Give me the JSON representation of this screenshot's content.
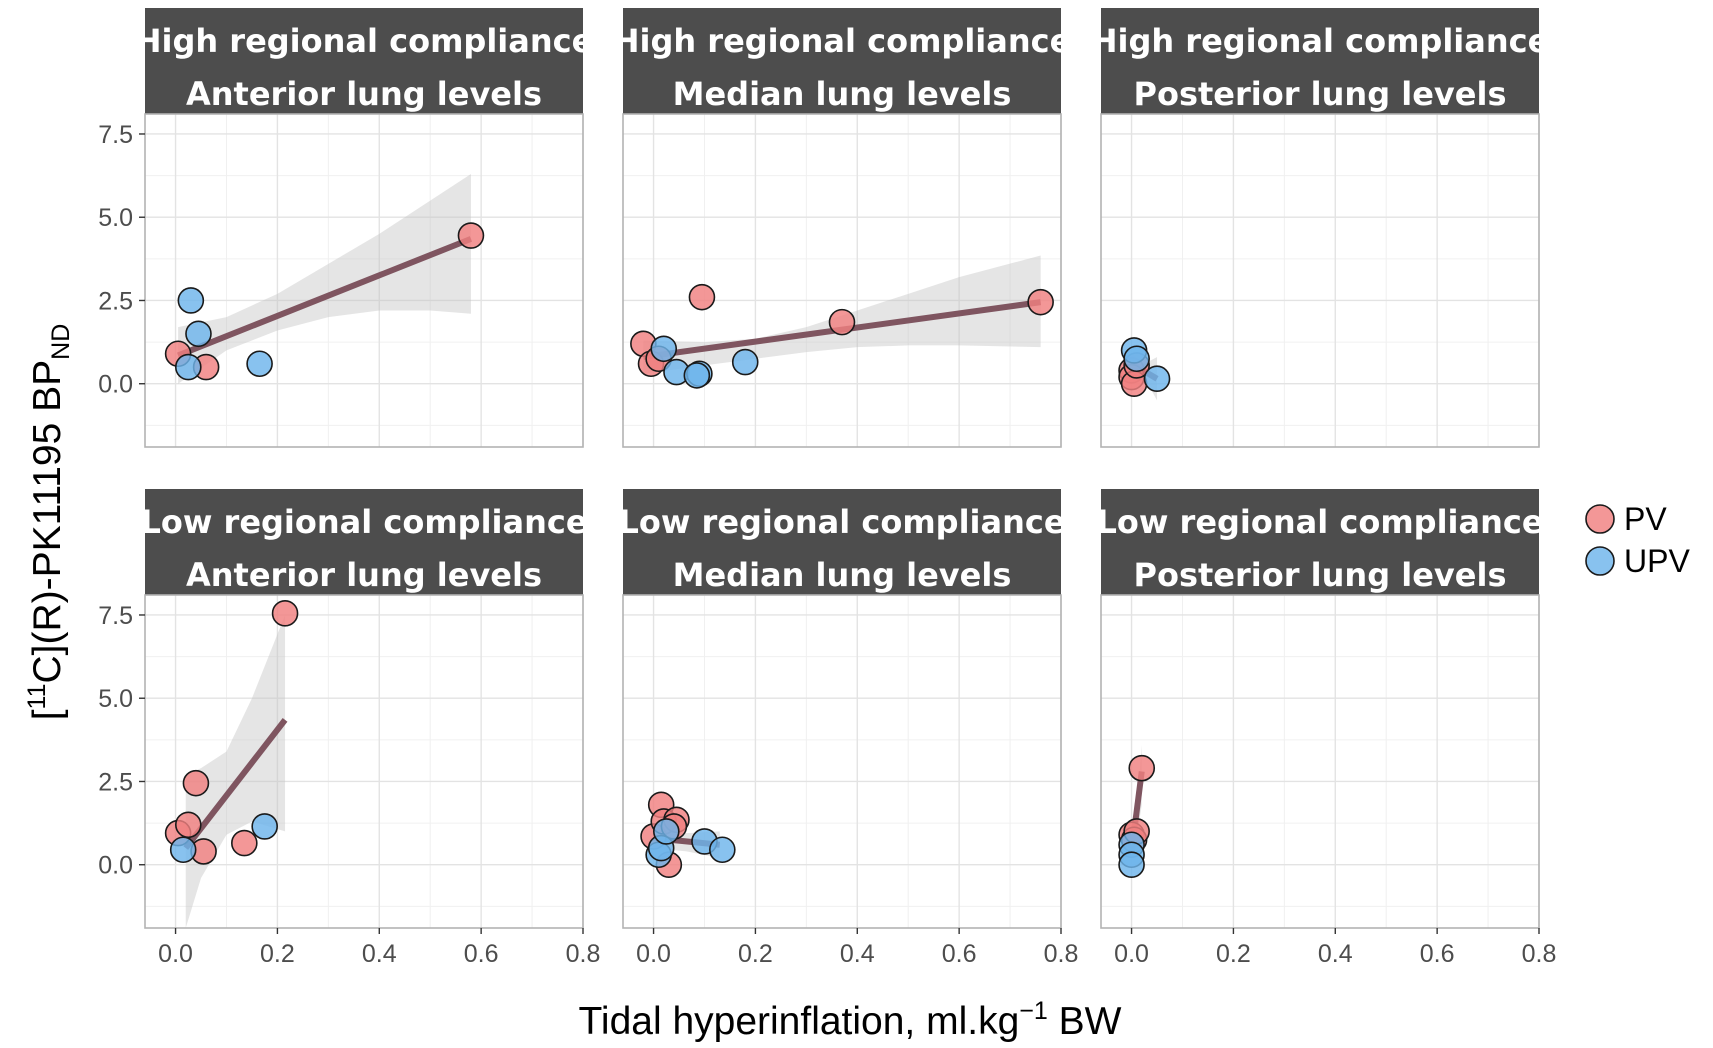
{
  "chart_data": {
    "type": "scatter",
    "ylabel": {
      "prefix": "[",
      "superscript": "11",
      "main": "C](R)-PK11195 BP",
      "subscript": "ND"
    },
    "xlabel": {
      "main": "Tidal hyperinflation, ml.kg",
      "superscript": "−1",
      "suffix": " BW"
    },
    "xlim": [
      -0.06,
      0.8
    ],
    "ylim": [
      -1.9,
      8.1
    ],
    "x_ticks": [
      0.0,
      0.2,
      0.4,
      0.6,
      0.8
    ],
    "x_tick_labels": [
      "0.0",
      "0.2",
      "0.4",
      "0.6",
      "0.8"
    ],
    "y_ticks": [
      0.0,
      2.5,
      5.0,
      7.5
    ],
    "y_tick_labels": [
      "0.0",
      "2.5",
      "5.0",
      "7.5"
    ],
    "legend": {
      "position": "right",
      "entries": [
        {
          "label": "PV",
          "color": "#f08080"
        },
        {
          "label": "UPV",
          "color": "#6eb4ec"
        }
      ]
    },
    "colors": {
      "PV": "#f08080",
      "UPV": "#6eb4ec",
      "fit_line": "#7f5560",
      "ribbon": "#c0c0c0",
      "strip": "#4d4d4d"
    },
    "panels": [
      {
        "strip": [
          "High regional compliance",
          "Anterior lung levels"
        ],
        "points": [
          {
            "x": 0.005,
            "y": 0.9,
            "group": "PV"
          },
          {
            "x": 0.06,
            "y": 0.5,
            "group": "PV"
          },
          {
            "x": 0.58,
            "y": 4.45,
            "group": "PV"
          },
          {
            "x": 0.03,
            "y": 2.5,
            "group": "UPV"
          },
          {
            "x": 0.045,
            "y": 1.5,
            "group": "UPV"
          },
          {
            "x": 0.025,
            "y": 0.5,
            "group": "UPV"
          },
          {
            "x": 0.165,
            "y": 0.6,
            "group": "UPV"
          }
        ],
        "fit": {
          "x": [
            0.005,
            0.58
          ],
          "y": [
            0.85,
            4.35
          ]
        },
        "ribbon": {
          "x": [
            0.005,
            0.1,
            0.2,
            0.3,
            0.4,
            0.5,
            0.58
          ],
          "lower": [
            0.0,
            1.0,
            1.6,
            2.0,
            2.2,
            2.2,
            2.1
          ],
          "upper": [
            1.7,
            2.0,
            2.7,
            3.6,
            4.5,
            5.5,
            6.3
          ]
        }
      },
      {
        "strip": [
          "High regional compliance",
          "Median lung levels"
        ],
        "points": [
          {
            "x": -0.02,
            "y": 1.2,
            "group": "PV"
          },
          {
            "x": -0.005,
            "y": 0.6,
            "group": "PV"
          },
          {
            "x": 0.01,
            "y": 0.75,
            "group": "PV"
          },
          {
            "x": 0.095,
            "y": 2.6,
            "group": "PV"
          },
          {
            "x": 0.37,
            "y": 1.85,
            "group": "PV"
          },
          {
            "x": 0.76,
            "y": 2.45,
            "group": "PV"
          },
          {
            "x": 0.02,
            "y": 1.05,
            "group": "UPV"
          },
          {
            "x": 0.045,
            "y": 0.35,
            "group": "UPV"
          },
          {
            "x": 0.09,
            "y": 0.3,
            "group": "UPV"
          },
          {
            "x": 0.085,
            "y": 0.25,
            "group": "UPV"
          },
          {
            "x": 0.18,
            "y": 0.65,
            "group": "UPV"
          }
        ],
        "fit": {
          "x": [
            -0.02,
            0.76
          ],
          "y": [
            0.8,
            2.45
          ]
        },
        "ribbon": {
          "x": [
            -0.02,
            0.1,
            0.2,
            0.3,
            0.4,
            0.5,
            0.6,
            0.76
          ],
          "lower": [
            0.3,
            0.55,
            0.75,
            0.95,
            1.1,
            1.15,
            1.15,
            1.1
          ],
          "upper": [
            1.3,
            1.25,
            1.35,
            1.7,
            2.2,
            2.7,
            3.2,
            3.85
          ]
        }
      },
      {
        "strip": [
          "High regional compliance",
          "Posterior lung levels"
        ],
        "points": [
          {
            "x": 0.0,
            "y": 0.4,
            "group": "PV"
          },
          {
            "x": 0.0,
            "y": 0.2,
            "group": "PV"
          },
          {
            "x": 0.005,
            "y": 0.0,
            "group": "PV"
          },
          {
            "x": 0.01,
            "y": 0.55,
            "group": "PV"
          },
          {
            "x": 0.005,
            "y": 1.0,
            "group": "UPV"
          },
          {
            "x": 0.01,
            "y": 0.75,
            "group": "UPV"
          },
          {
            "x": 0.05,
            "y": 0.15,
            "group": "UPV"
          }
        ],
        "fit": {
          "x": [
            0.0,
            0.05
          ],
          "y": [
            0.6,
            0.15
          ]
        },
        "ribbon": {
          "x": [
            0.0,
            0.025,
            0.05
          ],
          "lower": [
            0.3,
            0.2,
            -0.5
          ],
          "upper": [
            0.9,
            0.6,
            0.8
          ]
        }
      },
      {
        "strip": [
          "Low regional compliance",
          "Anterior lung levels"
        ],
        "points": [
          {
            "x": 0.005,
            "y": 0.95,
            "group": "PV"
          },
          {
            "x": 0.025,
            "y": 1.2,
            "group": "PV"
          },
          {
            "x": 0.04,
            "y": 2.45,
            "group": "PV"
          },
          {
            "x": 0.055,
            "y": 0.4,
            "group": "PV"
          },
          {
            "x": 0.135,
            "y": 0.65,
            "group": "PV"
          },
          {
            "x": 0.215,
            "y": 7.55,
            "group": "PV"
          },
          {
            "x": 0.015,
            "y": 0.45,
            "group": "UPV"
          },
          {
            "x": 0.175,
            "y": 1.15,
            "group": "UPV"
          }
        ],
        "fit": {
          "x": [
            0.02,
            0.215
          ],
          "y": [
            0.5,
            4.35
          ]
        },
        "ribbon": {
          "x": [
            0.02,
            0.05,
            0.1,
            0.15,
            0.215
          ],
          "lower": [
            -1.9,
            -0.4,
            0.9,
            1.3,
            1.0
          ],
          "upper": [
            2.7,
            2.9,
            3.4,
            5.0,
            7.5
          ]
        }
      },
      {
        "strip": [
          "Low regional compliance",
          "Median lung levels"
        ],
        "points": [
          {
            "x": 0.0,
            "y": 0.85,
            "group": "PV"
          },
          {
            "x": 0.015,
            "y": 1.8,
            "group": "PV"
          },
          {
            "x": 0.02,
            "y": 1.3,
            "group": "PV"
          },
          {
            "x": 0.045,
            "y": 1.35,
            "group": "PV"
          },
          {
            "x": 0.03,
            "y": 0.0,
            "group": "PV"
          },
          {
            "x": 0.04,
            "y": 1.15,
            "group": "PV"
          },
          {
            "x": 0.01,
            "y": 0.3,
            "group": "UPV"
          },
          {
            "x": 0.015,
            "y": 0.5,
            "group": "UPV"
          },
          {
            "x": 0.025,
            "y": 1.0,
            "group": "UPV"
          },
          {
            "x": 0.1,
            "y": 0.7,
            "group": "UPV"
          },
          {
            "x": 0.135,
            "y": 0.45,
            "group": "UPV"
          }
        ],
        "fit": {
          "x": [
            0.0,
            0.13
          ],
          "y": [
            0.8,
            0.6
          ]
        },
        "ribbon": {
          "x": [
            0.0,
            0.065,
            0.13
          ],
          "lower": [
            0.5,
            0.4,
            0.2
          ],
          "upper": [
            1.1,
            0.95,
            1.0
          ]
        }
      },
      {
        "strip": [
          "Low regional compliance",
          "Posterior lung levels"
        ],
        "points": [
          {
            "x": 0.0,
            "y": 0.9,
            "group": "PV"
          },
          {
            "x": 0.005,
            "y": 0.75,
            "group": "PV"
          },
          {
            "x": 0.01,
            "y": 1.0,
            "group": "PV"
          },
          {
            "x": 0.02,
            "y": 2.9,
            "group": "PV"
          },
          {
            "x": 0.0,
            "y": 0.6,
            "group": "UPV"
          },
          {
            "x": 0.0,
            "y": 0.3,
            "group": "UPV"
          },
          {
            "x": 0.0,
            "y": 0.0,
            "group": "UPV"
          }
        ],
        "fit": {
          "x": [
            0.0,
            0.02
          ],
          "y": [
            0.4,
            2.8
          ]
        },
        "ribbon": {
          "x": [
            0.0,
            0.01,
            0.02
          ],
          "lower": [
            0.1,
            0.8,
            1.8
          ],
          "upper": [
            0.8,
            1.6,
            3.6
          ]
        }
      }
    ]
  }
}
